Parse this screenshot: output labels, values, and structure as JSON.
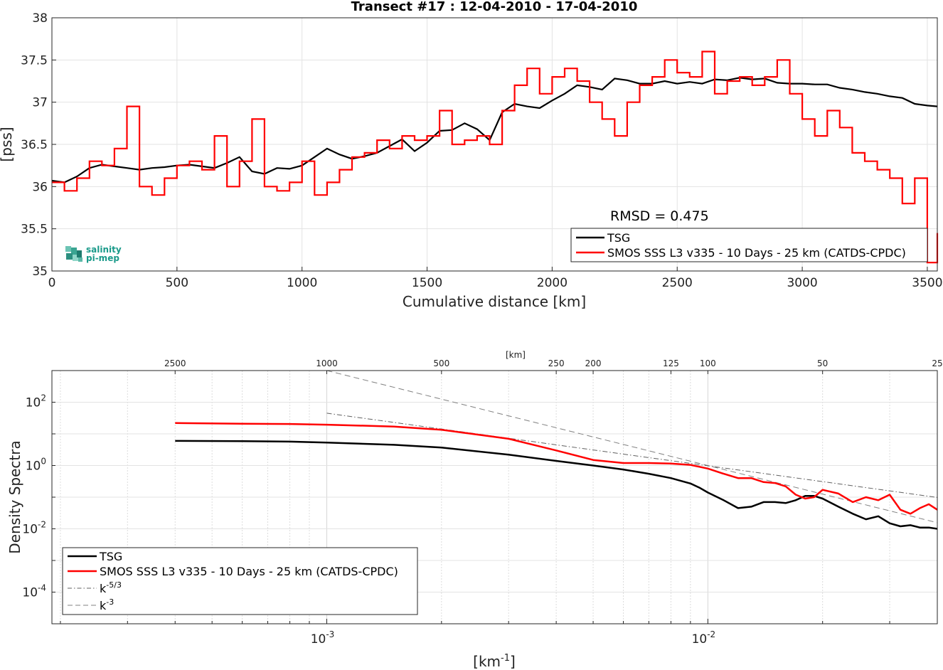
{
  "chart_data": [
    {
      "type": "line",
      "title": "Transect #17 : 12-04-2010 - 17-04-2010",
      "xlabel": "Cumulative distance [km]",
      "ylabel": "[pss]",
      "xlim": [
        0,
        3540
      ],
      "ylim": [
        35,
        38
      ],
      "xticks": [
        "0",
        "500",
        "1000",
        "1500",
        "2000",
        "2500",
        "3000",
        "3500"
      ],
      "yticks": [
        "35",
        "35.5",
        "36",
        "36.5",
        "37",
        "37.5",
        "38"
      ],
      "grid": true,
      "legend_position": "bottom-right",
      "annotation": "RMSD = 0.475",
      "logo_lines": [
        "salinity",
        "pi-mep"
      ],
      "series": [
        {
          "name": "TSG",
          "color": "#000000",
          "x": [
            0,
            50,
            100,
            150,
            200,
            250,
            300,
            350,
            400,
            450,
            500,
            550,
            600,
            650,
            700,
            750,
            800,
            850,
            900,
            950,
            1000,
            1050,
            1100,
            1150,
            1200,
            1250,
            1300,
            1350,
            1400,
            1450,
            1500,
            1550,
            1600,
            1650,
            1700,
            1750,
            1800,
            1850,
            1900,
            1950,
            2000,
            2050,
            2100,
            2150,
            2200,
            2250,
            2300,
            2350,
            2400,
            2450,
            2500,
            2550,
            2600,
            2650,
            2700,
            2750,
            2800,
            2850,
            2900,
            2950,
            3000,
            3050,
            3100,
            3150,
            3200,
            3250,
            3300,
            3350,
            3400,
            3450,
            3500,
            3540
          ],
          "y": [
            36.07,
            36.05,
            36.12,
            36.22,
            36.26,
            36.24,
            36.22,
            36.2,
            36.22,
            36.23,
            36.25,
            36.26,
            36.24,
            36.22,
            36.28,
            36.35,
            36.18,
            36.15,
            36.22,
            36.21,
            36.25,
            36.35,
            36.45,
            36.38,
            36.33,
            36.36,
            36.4,
            36.48,
            36.56,
            36.42,
            36.52,
            36.66,
            36.67,
            36.75,
            36.68,
            36.55,
            36.88,
            36.98,
            36.95,
            36.93,
            37.02,
            37.1,
            37.2,
            37.18,
            37.15,
            37.28,
            37.26,
            37.22,
            37.22,
            37.25,
            37.22,
            37.24,
            37.22,
            37.27,
            37.26,
            37.29,
            37.27,
            37.28,
            37.23,
            37.22,
            37.22,
            37.21,
            37.21,
            37.17,
            37.15,
            37.12,
            37.1,
            37.07,
            37.05,
            36.98,
            36.96,
            36.95
          ]
        },
        {
          "name": "SMOS SSS L3 v335 - 10 Days - 25 km (CATDS-CPDC)",
          "color": "#ff0000",
          "x": [
            0,
            50,
            100,
            150,
            200,
            250,
            300,
            350,
            400,
            450,
            500,
            550,
            600,
            650,
            700,
            750,
            800,
            850,
            900,
            950,
            1000,
            1050,
            1100,
            1150,
            1200,
            1250,
            1300,
            1350,
            1400,
            1450,
            1500,
            1550,
            1600,
            1650,
            1700,
            1750,
            1800,
            1850,
            1900,
            1950,
            2000,
            2050,
            2100,
            2150,
            2200,
            2250,
            2300,
            2350,
            2400,
            2450,
            2500,
            2550,
            2600,
            2650,
            2700,
            2750,
            2800,
            2850,
            2900,
            2950,
            3000,
            3050,
            3100,
            3150,
            3200,
            3250,
            3300,
            3350,
            3400,
            3450,
            3500,
            3540
          ],
          "y": [
            36.05,
            35.95,
            36.1,
            36.3,
            36.25,
            36.45,
            36.95,
            36.0,
            35.9,
            36.1,
            36.25,
            36.3,
            36.2,
            36.6,
            36.0,
            36.3,
            36.8,
            36.0,
            35.95,
            36.05,
            36.3,
            35.9,
            36.05,
            36.2,
            36.35,
            36.4,
            36.55,
            36.45,
            36.6,
            36.55,
            36.6,
            36.9,
            36.5,
            36.55,
            36.6,
            36.5,
            36.9,
            37.2,
            37.4,
            37.1,
            37.3,
            37.4,
            37.25,
            37.0,
            36.8,
            36.6,
            37.0,
            37.2,
            37.3,
            37.5,
            37.35,
            37.3,
            37.6,
            37.1,
            37.25,
            37.3,
            37.2,
            37.3,
            37.5,
            37.1,
            36.8,
            36.6,
            36.9,
            36.7,
            36.4,
            36.3,
            36.2,
            36.1,
            35.8,
            36.1,
            35.1,
            35.45
          ]
        }
      ]
    },
    {
      "type": "line",
      "xlabel_base": "[km",
      "xlabel_sup": "-1",
      "xlabel_end": "]",
      "ylabel": "Density Spectra",
      "x_scale": "log",
      "y_scale": "log",
      "xlim": [
        0.00019,
        0.04
      ],
      "ylim": [
        1e-05,
        1000
      ],
      "x_major_ticks": [
        {
          "value": 0.001,
          "base": "10",
          "exp": "-3"
        },
        {
          "value": 0.01,
          "base": "10",
          "exp": "-2"
        }
      ],
      "y_major_ticks": [
        {
          "value": 100,
          "base": "10",
          "exp": "2"
        },
        {
          "value": 1,
          "base": "10",
          "exp": "0"
        },
        {
          "value": 0.01,
          "base": "10",
          "exp": "-2"
        },
        {
          "value": 0.0001,
          "base": "10",
          "exp": "-4"
        }
      ],
      "top_axis_label": "[km]",
      "top_ticks": [
        2500,
        1000,
        500,
        250,
        200,
        125,
        100,
        50,
        25
      ],
      "grid": true,
      "legend_position": "bottom-left",
      "series": [
        {
          "name": "TSG",
          "color": "#000000",
          "x": [
            0.0004,
            0.0006,
            0.0008,
            0.001,
            0.0015,
            0.002,
            0.003,
            0.004,
            0.005,
            0.006,
            0.007,
            0.008,
            0.009,
            0.0095,
            0.01,
            0.011,
            0.012,
            0.013,
            0.014,
            0.015,
            0.016,
            0.017,
            0.018,
            0.019,
            0.02,
            0.022,
            0.024,
            0.026,
            0.028,
            0.03,
            0.032,
            0.034,
            0.036,
            0.038,
            0.04
          ],
          "y": [
            6,
            5.9,
            5.7,
            5.3,
            4.5,
            3.7,
            2.2,
            1.4,
            1.0,
            0.75,
            0.55,
            0.4,
            0.27,
            0.2,
            0.14,
            0.08,
            0.045,
            0.05,
            0.07,
            0.07,
            0.065,
            0.08,
            0.11,
            0.11,
            0.09,
            0.05,
            0.03,
            0.02,
            0.025,
            0.015,
            0.012,
            0.013,
            0.011,
            0.011,
            0.01
          ]
        },
        {
          "name": "SMOS SSS L3 v335 - 10 Days - 25 km (CATDS-CPDC)",
          "color": "#ff0000",
          "x": [
            0.0004,
            0.0006,
            0.0008,
            0.001,
            0.0015,
            0.002,
            0.003,
            0.004,
            0.005,
            0.006,
            0.007,
            0.008,
            0.009,
            0.01,
            0.011,
            0.012,
            0.013,
            0.014,
            0.015,
            0.016,
            0.017,
            0.018,
            0.019,
            0.02,
            0.022,
            0.024,
            0.026,
            0.028,
            0.03,
            0.032,
            0.034,
            0.036,
            0.038,
            0.04
          ],
          "y": [
            22,
            21,
            20.5,
            19.5,
            17,
            13.5,
            7,
            3,
            1.5,
            1.2,
            1.2,
            1.15,
            1.05,
            0.8,
            0.55,
            0.4,
            0.4,
            0.3,
            0.28,
            0.22,
            0.12,
            0.09,
            0.1,
            0.17,
            0.13,
            0.07,
            0.1,
            0.08,
            0.12,
            0.04,
            0.03,
            0.045,
            0.06,
            0.04
          ]
        },
        {
          "name": "k-5/3",
          "name_base": "k",
          "name_sup": "-5/3",
          "color": "#606060",
          "dash": "dash-dot",
          "x": [
            0.001,
            0.04
          ],
          "y": [
            45,
            0.098
          ]
        },
        {
          "name": "k-3",
          "name_base": "k",
          "name_sup": "-3",
          "color": "#808080",
          "dash": "dashed",
          "x": [
            0.001,
            0.04
          ],
          "y": [
            1000,
            0.0156
          ]
        }
      ]
    }
  ]
}
